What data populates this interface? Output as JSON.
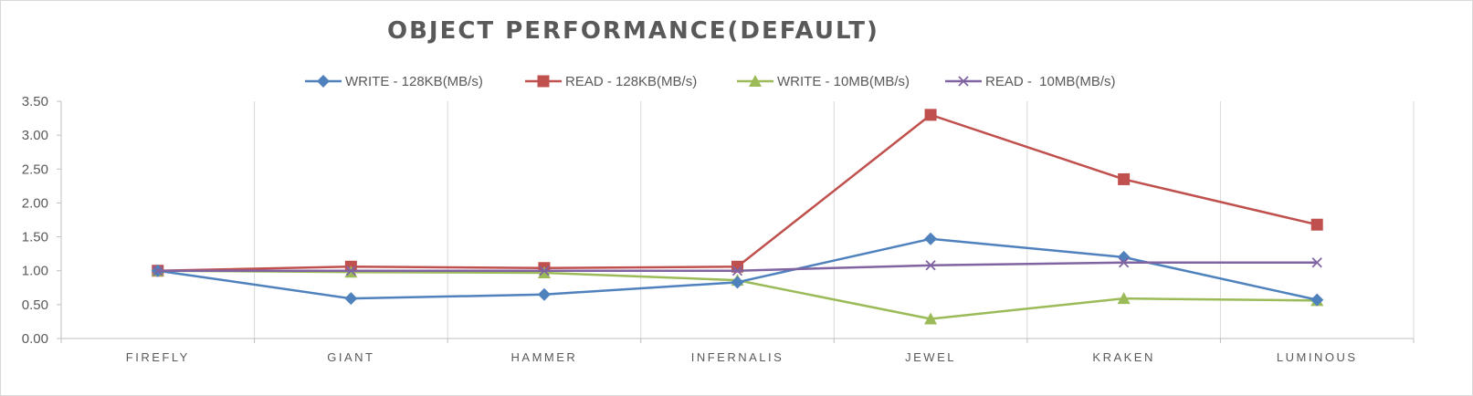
{
  "chart_data": {
    "type": "line",
    "title": "OBJECT  PERFORMANCE(DEFAULT)",
    "xlabel": "",
    "ylabel": "",
    "categories": [
      "FIREFLY",
      "GIANT",
      "HAMMER",
      "INFERNALIS",
      "JEWEL",
      "KRAKEN",
      "LUMINOUS"
    ],
    "ylim": [
      0,
      3.5
    ],
    "yticks": [
      "0.00",
      "0.50",
      "1.00",
      "1.50",
      "2.00",
      "2.50",
      "3.00",
      "3.50"
    ],
    "grid": "vertical",
    "legend_position": "top",
    "series": [
      {
        "name": "WRITE - 128KB(MB/s)",
        "color": "#4f81bd",
        "marker": "diamond",
        "values": [
          1.0,
          0.59,
          0.65,
          0.83,
          1.47,
          1.2,
          0.57
        ]
      },
      {
        "name": "READ - 128KB(MB/s)",
        "color": "#c0504d",
        "marker": "square",
        "values": [
          1.0,
          1.06,
          1.04,
          1.06,
          3.3,
          2.35,
          1.68
        ]
      },
      {
        "name": "WRITE - 10MB(MB/s)",
        "color": "#9bbb59",
        "marker": "triangle",
        "values": [
          1.0,
          0.98,
          0.97,
          0.86,
          0.29,
          0.59,
          0.56
        ]
      },
      {
        "name": "READ -  10MB(MB/s)",
        "color": "#8064a2",
        "marker": "x",
        "values": [
          1.0,
          1.0,
          1.0,
          1.0,
          1.08,
          1.12,
          1.12
        ]
      }
    ]
  }
}
